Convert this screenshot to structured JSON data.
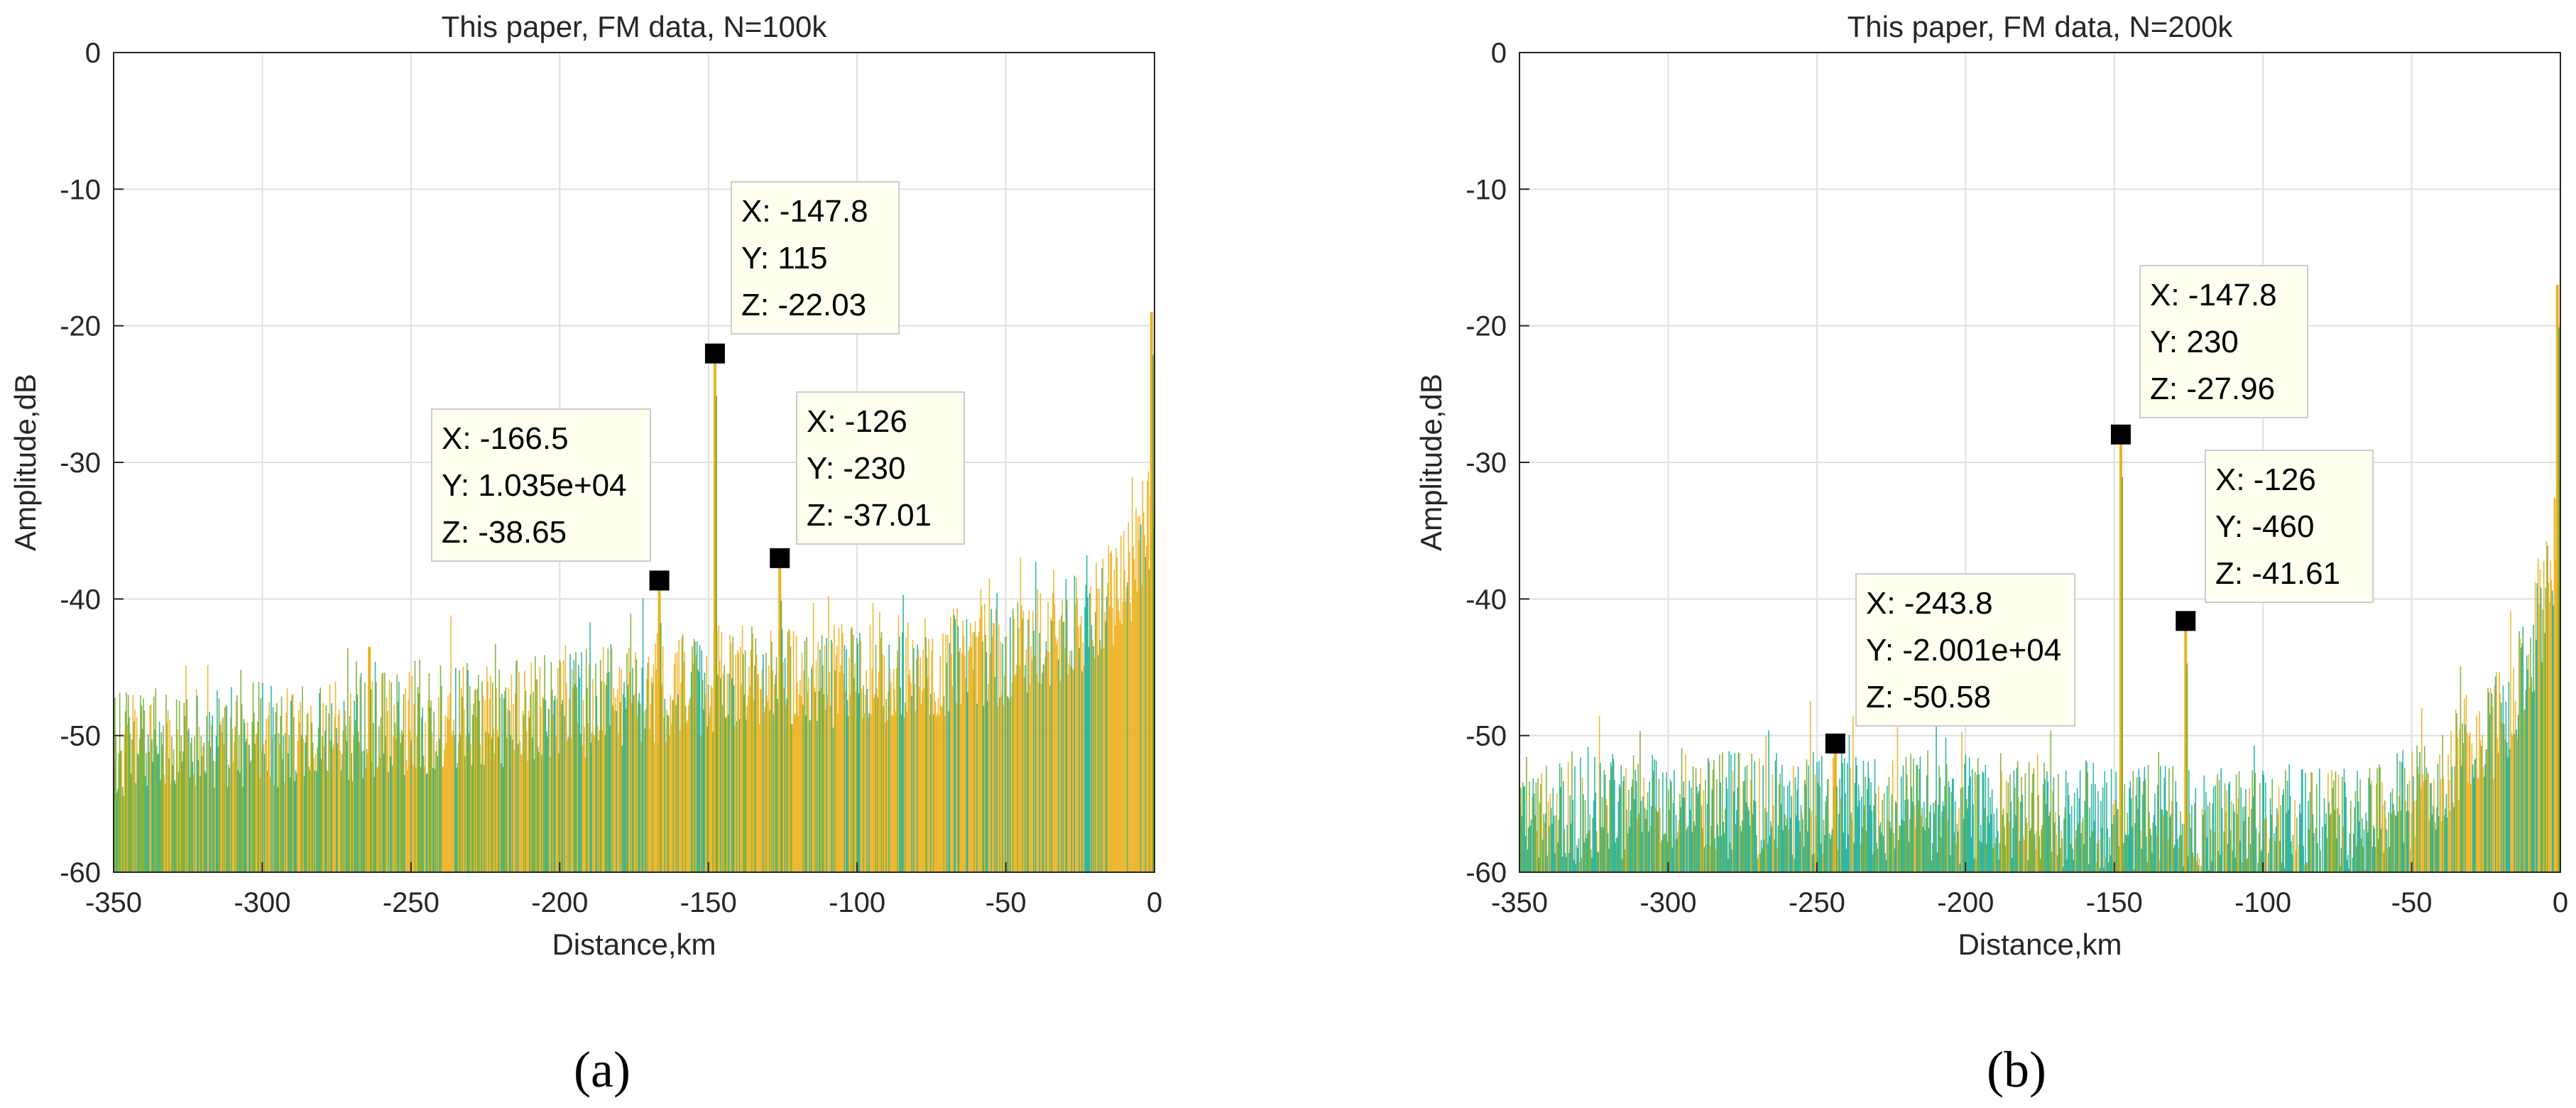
{
  "figure": {
    "panel_labels": [
      "(a)",
      "(b)"
    ]
  },
  "colors": {
    "bar_yellow": "#EDB120",
    "bar_green": "#77AC30",
    "bar_teal": "#1DAF9A",
    "grid": "#DFDFDF",
    "axis": "#262626",
    "datatip_bg": "#FFFFF0",
    "datatip_border": "#CCCCCC"
  },
  "chart_data": [
    {
      "type": "bar",
      "title": "This paper, FM data, N=100k",
      "xlabel": "Distance,km",
      "ylabel": "Amplitude,dB",
      "xlim": [
        -350,
        0
      ],
      "ylim": [
        -60,
        0
      ],
      "xticks": [
        -350,
        -300,
        -250,
        -200,
        -150,
        -100,
        -50,
        0
      ],
      "yticks": [
        0,
        -10,
        -20,
        -30,
        -40,
        -50,
        -60
      ],
      "grid": true,
      "noise_floor_profile": [
        {
          "x": -350,
          "y": -50.5
        },
        {
          "x": -300,
          "y": -50.0
        },
        {
          "x": -250,
          "y": -49.0
        },
        {
          "x": -200,
          "y": -48.0
        },
        {
          "x": -150,
          "y": -46.0
        },
        {
          "x": -100,
          "y": -45.5
        },
        {
          "x": -50,
          "y": -44.0
        },
        {
          "x": -20,
          "y": -41.0
        },
        {
          "x": -5,
          "y": -37.0
        },
        {
          "x": 0,
          "y": -33.0
        }
      ],
      "peaks": [
        {
          "x": -147.8,
          "y": -22.03
        },
        {
          "x": -166.5,
          "y": -38.65
        },
        {
          "x": -126,
          "y": -37.01
        },
        {
          "x": -264,
          "y": -43.5
        },
        {
          "x": -1,
          "y": -19.0
        }
      ],
      "datatips": [
        {
          "lines": [
            "X: -166.5",
            "Y: 1.035e+04",
            "Z: -38.65"
          ],
          "x": -166.5,
          "z": -38.65
        },
        {
          "lines": [
            "X: -147.8",
            "Y: 115",
            "Z: -22.03"
          ],
          "x": -147.8,
          "z": -22.03
        },
        {
          "lines": [
            "X: -126",
            "Y: -230",
            "Z: -37.01"
          ],
          "x": -126,
          "z": -37.01
        }
      ]
    },
    {
      "type": "bar",
      "title": "This paper, FM data, N=200k",
      "xlabel": "Distance,km",
      "ylabel": "Amplitude,dB",
      "xlim": [
        -350,
        0
      ],
      "ylim": [
        -60,
        0
      ],
      "xticks": [
        -350,
        -300,
        -250,
        -200,
        -150,
        -100,
        -50,
        0
      ],
      "yticks": [
        0,
        -10,
        -20,
        -30,
        -40,
        -50,
        -60
      ],
      "grid": true,
      "noise_floor_profile": [
        {
          "x": -350,
          "y": -55.5
        },
        {
          "x": -250,
          "y": -55.0
        },
        {
          "x": -150,
          "y": -55.8
        },
        {
          "x": -100,
          "y": -56.5
        },
        {
          "x": -60,
          "y": -56.0
        },
        {
          "x": -40,
          "y": -53.0
        },
        {
          "x": -20,
          "y": -49.0
        },
        {
          "x": -8,
          "y": -43.0
        },
        {
          "x": 0,
          "y": -34.0
        }
      ],
      "peaks": [
        {
          "x": -147.8,
          "y": -27.96
        },
        {
          "x": -126,
          "y": -41.61
        },
        {
          "x": -243.8,
          "y": -50.58
        },
        {
          "x": -1,
          "y": -17.0
        }
      ],
      "datatips": [
        {
          "lines": [
            "X: -243.8",
            "Y: -2.001e+04",
            "Z: -50.58"
          ],
          "x": -243.8,
          "z": -50.58
        },
        {
          "lines": [
            "X: -147.8",
            "Y: 230",
            "Z: -27.96"
          ],
          "x": -147.8,
          "z": -27.96
        },
        {
          "lines": [
            "X: -126",
            "Y: -460",
            "Z: -41.61"
          ],
          "x": -126,
          "z": -41.61
        }
      ]
    }
  ]
}
